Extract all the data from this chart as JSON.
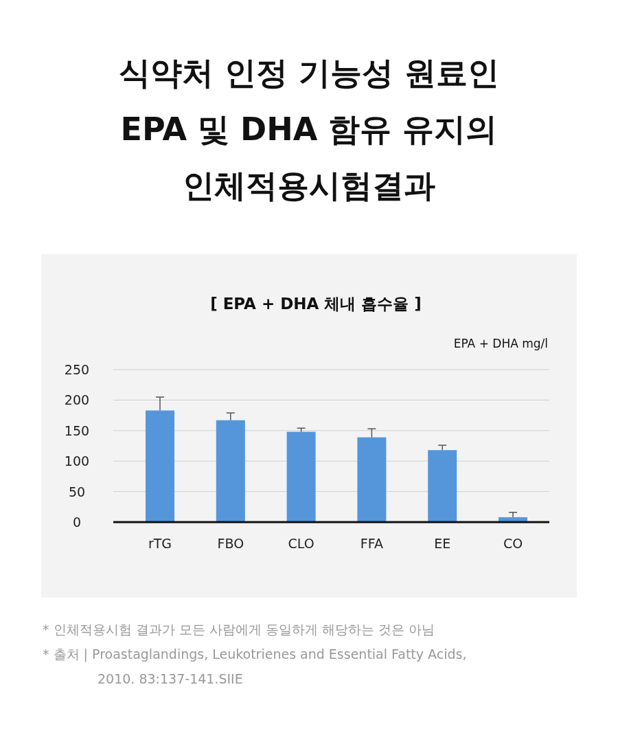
{
  "chart_data": {
    "type": "bar",
    "title": "식약처 인정 기능성 원료인\nEPA 및 DHA 함유 유지의\n인체적용시험결과",
    "subtitle": "[ EPA + DHA 체내 흡수율 ]",
    "ylabel": "EPA + DHA mg/l",
    "categories": [
      "rTG",
      "FBO",
      "CLO",
      "FFA",
      "EE",
      "CO"
    ],
    "values": [
      183,
      167,
      148,
      139,
      118,
      8
    ],
    "errors": [
      [
        183,
        205
      ],
      [
        167,
        179
      ],
      [
        148,
        154
      ],
      [
        139,
        153
      ],
      [
        118,
        126
      ],
      [
        8,
        16
      ]
    ],
    "color": "#5596db",
    "ylim": [
      0,
      250
    ],
    "yticks": [
      0,
      50,
      100,
      150,
      200,
      250
    ],
    "grid": "y",
    "annotations": [
      "* 인체적용시험 결과가 모든 사람에게 동일하게 해당하는 것은 아님",
      "* 출처 | Proastaglandings, Leukotrienes and Essential Fatty Acids, 2010. 83:137-141.SIIE"
    ]
  }
}
